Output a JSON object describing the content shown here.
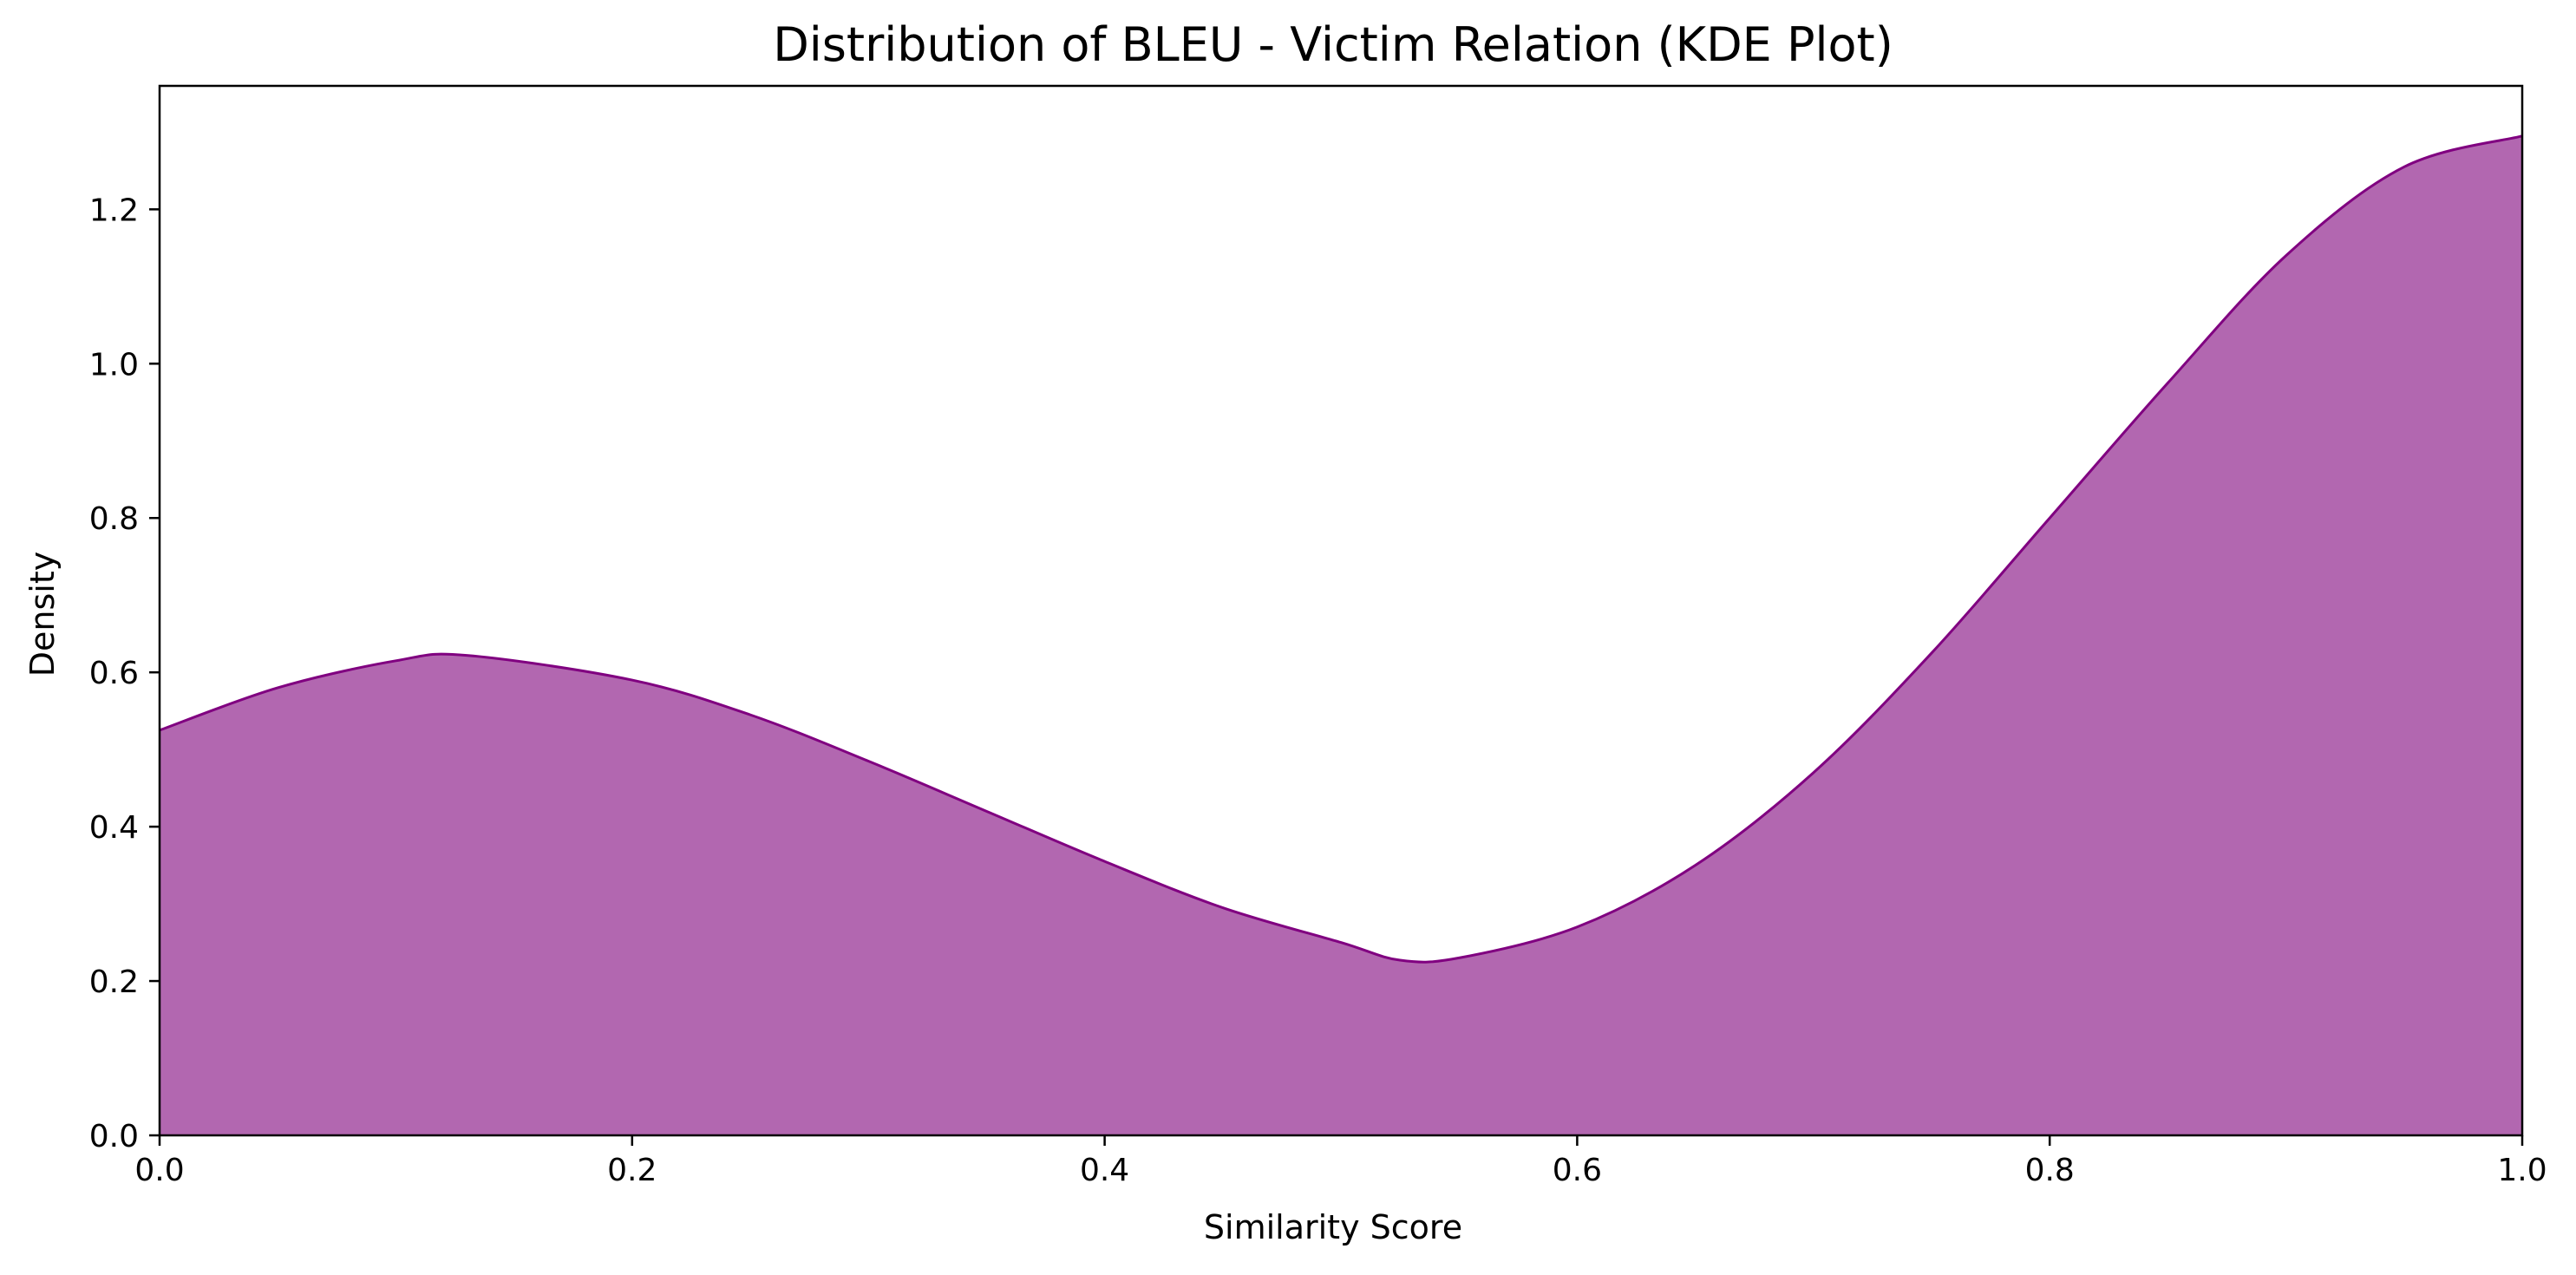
{
  "chart_data": {
    "type": "area",
    "title": "Distribution of BLEU - Victim Relation (KDE Plot)",
    "xlabel": "Similarity Score",
    "ylabel": "Density",
    "xlim": [
      0.0,
      1.0
    ],
    "ylim": [
      0.0,
      1.36
    ],
    "xticks": [
      0.0,
      0.2,
      0.4,
      0.6,
      0.8,
      1.0
    ],
    "xtick_labels": [
      "0.0",
      "0.2",
      "0.4",
      "0.6",
      "0.8",
      "1.0"
    ],
    "yticks": [
      0.0,
      0.2,
      0.4,
      0.6,
      0.8,
      1.0,
      1.2
    ],
    "ytick_labels": [
      "0.0",
      "0.2",
      "0.4",
      "0.6",
      "0.8",
      "1.0",
      "1.2"
    ],
    "grid": false,
    "legend": "none",
    "colors": {
      "fill": "#b267b0",
      "line": "#800080"
    },
    "series": [
      {
        "x": [
          0.0,
          0.05,
          0.1,
          0.13,
          0.2,
          0.25,
          0.3,
          0.35,
          0.4,
          0.45,
          0.5,
          0.525,
          0.55,
          0.6,
          0.65,
          0.7,
          0.75,
          0.8,
          0.85,
          0.9,
          0.95,
          1.0
        ],
        "y": [
          0.525,
          0.58,
          0.615,
          0.622,
          0.59,
          0.545,
          0.485,
          0.42,
          0.355,
          0.295,
          0.25,
          0.227,
          0.23,
          0.27,
          0.35,
          0.47,
          0.625,
          0.8,
          0.975,
          1.14,
          1.255,
          1.295
        ]
      }
    ]
  }
}
